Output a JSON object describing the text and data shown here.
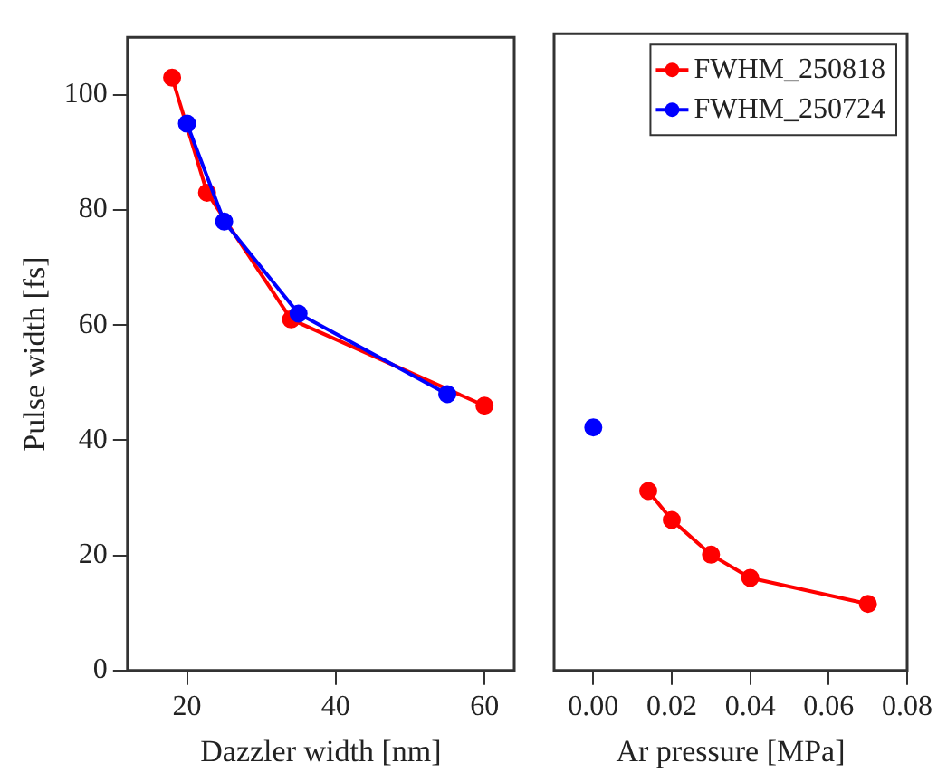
{
  "chart_data": [
    {
      "type": "line",
      "xlabel": "Dazzler width [nm]",
      "ylabel": "Pulse width [fs]",
      "xlim": [
        12,
        64
      ],
      "xticks": [
        20,
        40,
        60
      ],
      "ylim": [
        0,
        110
      ],
      "yticks": [
        0,
        20,
        40,
        60,
        80,
        100
      ],
      "grid": false,
      "legend": false,
      "marker": "circle",
      "line_style": "solid",
      "series": [
        {
          "color": "#ff0000",
          "x": [
            18,
            22.7,
            34,
            60
          ],
          "values": [
            103,
            83,
            61,
            46
          ]
        },
        {
          "color": "#0000ff",
          "x": [
            20,
            25,
            35,
            55
          ],
          "values": [
            95,
            78,
            62,
            48
          ]
        }
      ]
    },
    {
      "type": "line",
      "xlabel": "Ar pressure [MPa]",
      "xlim": [
        -0.01,
        0.08
      ],
      "xticks": [
        {
          "value": 0,
          "label": "0.00"
        },
        0.02,
        0.04,
        0.06,
        0.08
      ],
      "ylim": [
        0,
        110
      ],
      "tick_labels": "x",
      "grid": false,
      "legend": "top right",
      "marker": "circle",
      "line_style": "solid",
      "series": [
        {
          "name": "FWHM_250818",
          "color": "#ff0000",
          "x": [
            0.014,
            0.02,
            0.03,
            0.04,
            0.07
          ],
          "values": [
            31,
            26,
            20,
            16,
            11.5
          ]
        },
        {
          "name": "FWHM_250724",
          "color": "#0000ff",
          "x": [
            0
          ],
          "values": [
            42
          ]
        }
      ]
    }
  ]
}
